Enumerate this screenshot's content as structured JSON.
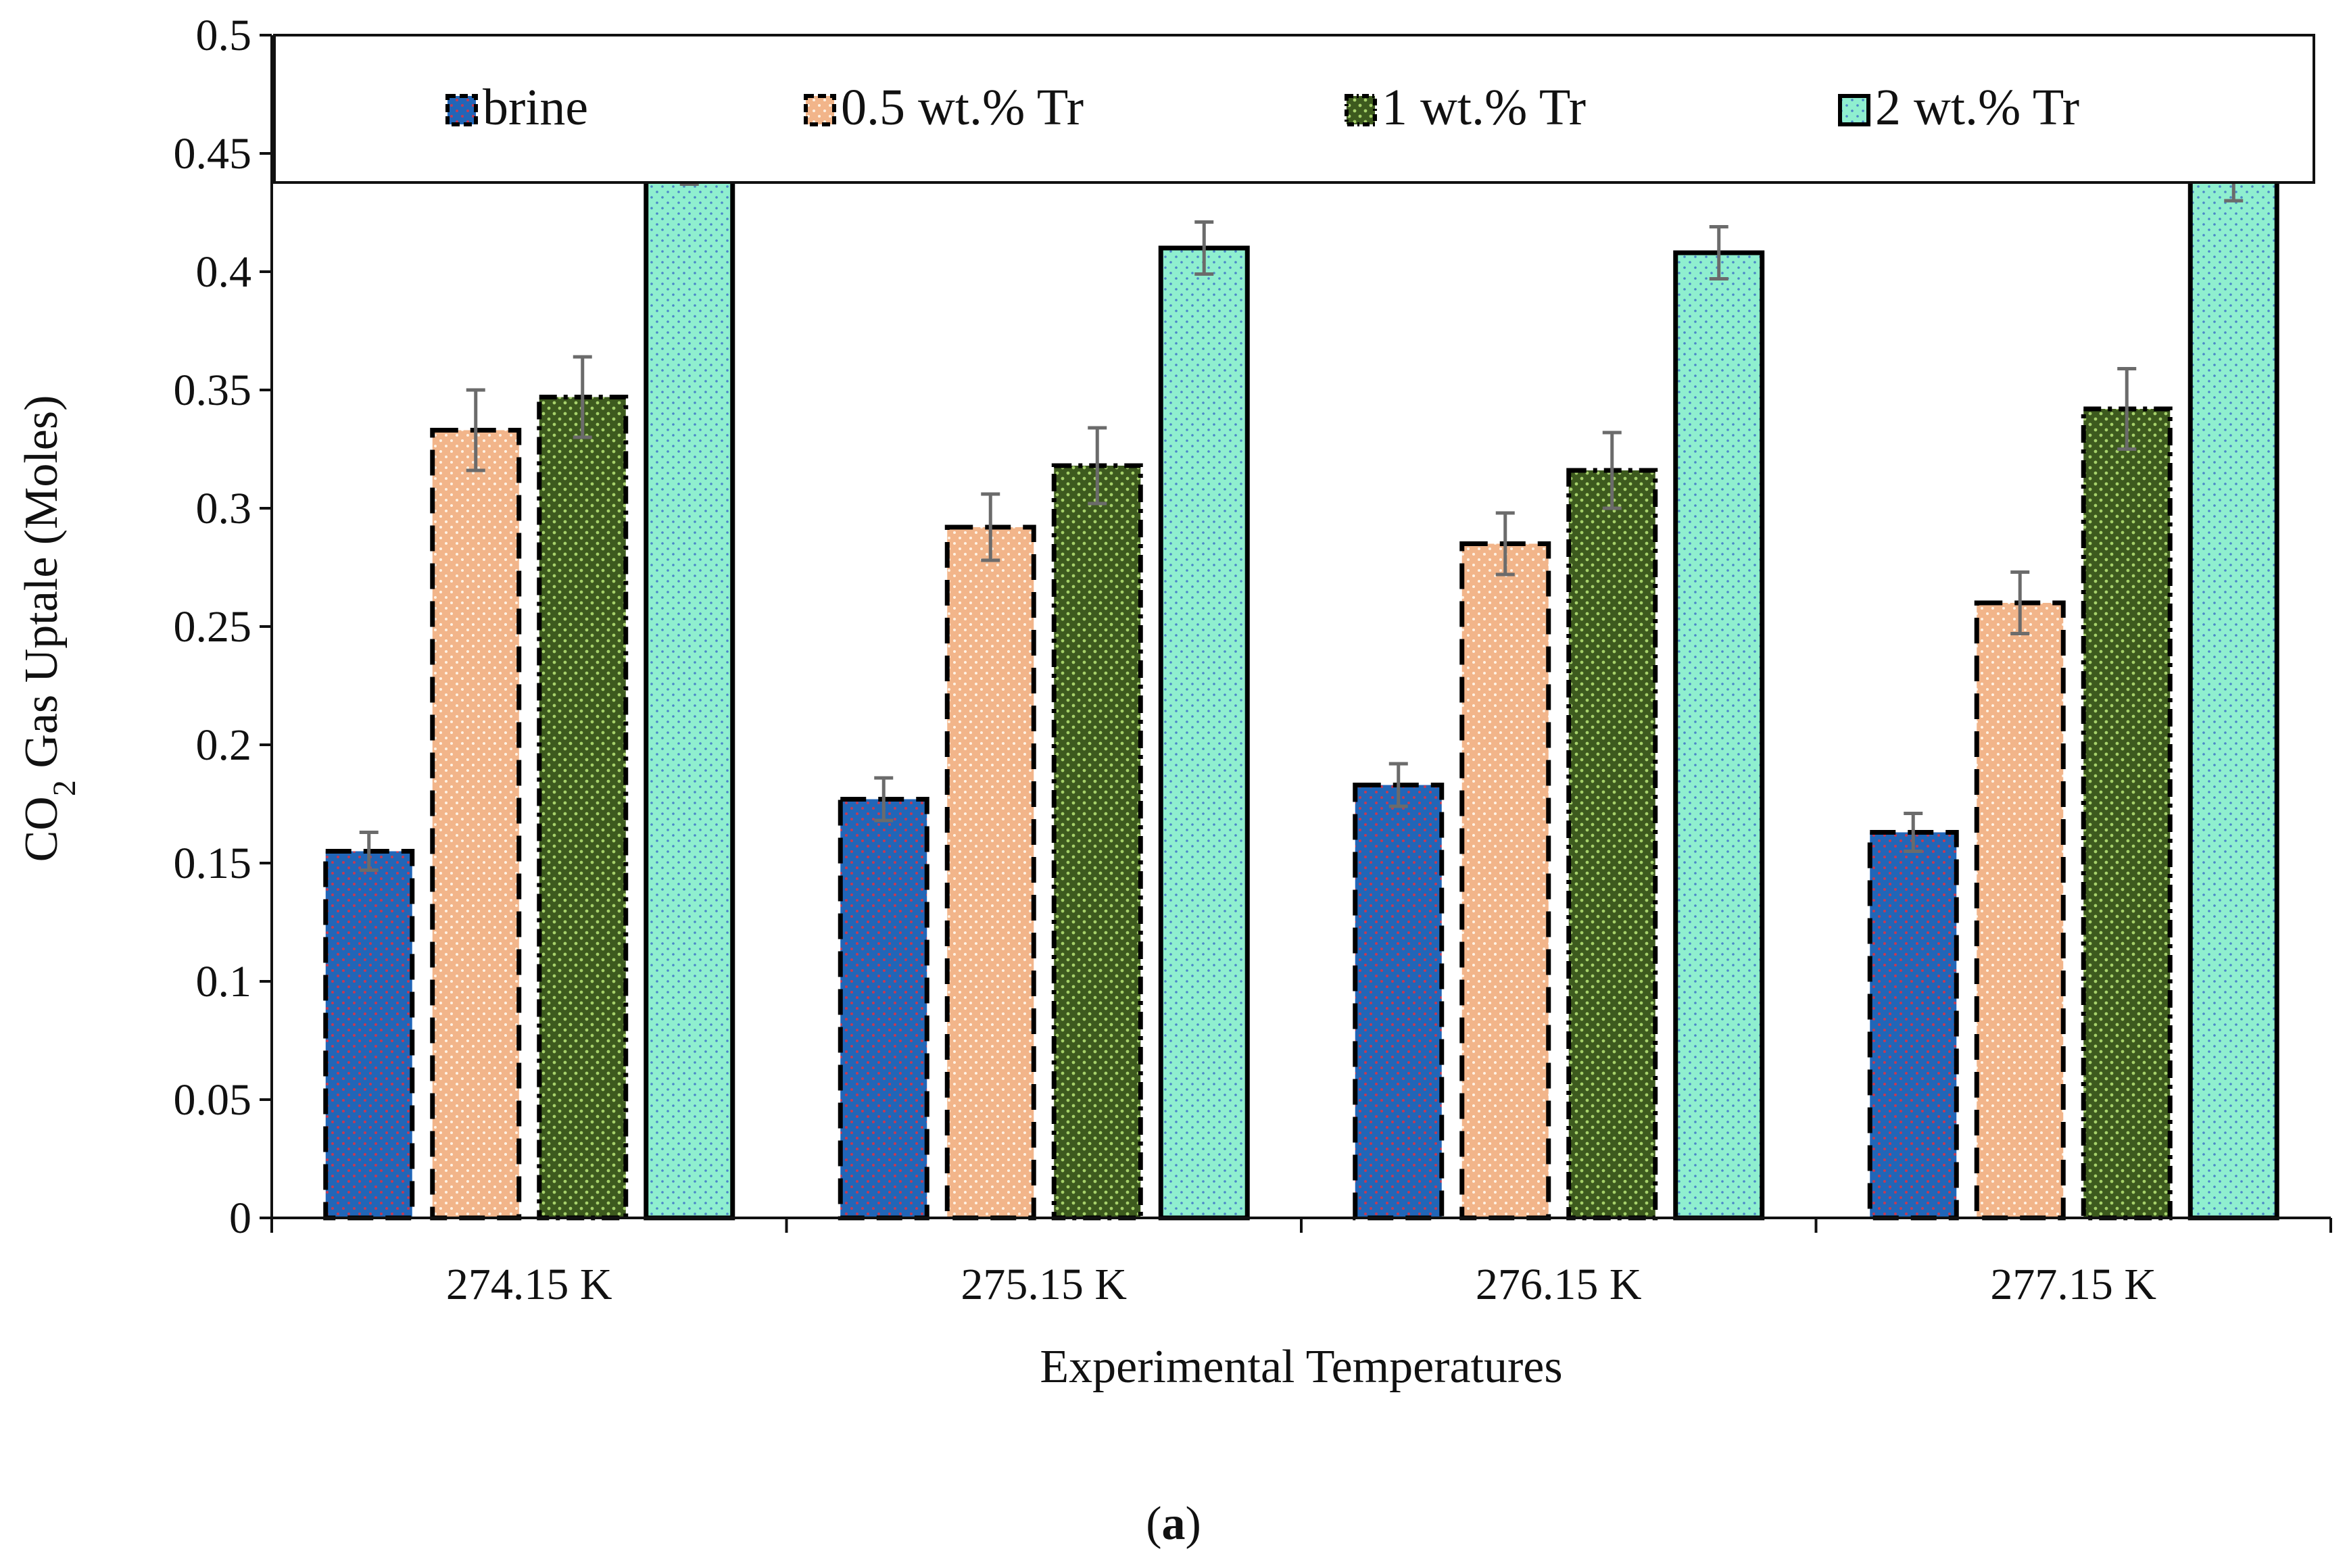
{
  "chart_data": {
    "type": "bar",
    "xlabel": "Experimental Temperatures",
    "ylabel_prefix": "CO",
    "ylabel_sub": "2",
    "ylabel_suffix": " Gas Uptale (Moles)",
    "categories": [
      "274.15 K",
      "275.15 K",
      "276.15 K",
      "277.15 K"
    ],
    "ylim": [
      0,
      0.5
    ],
    "yticks": [
      "0",
      "0.05",
      "0.1",
      "0.15",
      "0.2",
      "0.25",
      "0.3",
      "0.35",
      "0.4",
      "0.45",
      "0.5"
    ],
    "legend_position": "top",
    "grid": false,
    "error_bars": true,
    "series": [
      {
        "name": "brine",
        "values": [
          0.155,
          0.177,
          0.183,
          0.163
        ],
        "errors": [
          0.008,
          0.009,
          0.009,
          0.008
        ],
        "color": "#2166b8"
      },
      {
        "name": "0.5 wt.% Tr",
        "values": [
          0.333,
          0.292,
          0.285,
          0.26
        ],
        "errors": [
          0.017,
          0.014,
          0.013,
          0.013
        ],
        "color": "#f2b58a"
      },
      {
        "name": "1 wt.% Tr",
        "values": [
          0.347,
          0.318,
          0.316,
          0.342
        ],
        "errors": [
          0.017,
          0.016,
          0.016,
          0.017
        ],
        "color": "#3d5a1e"
      },
      {
        "name": "2 wt.% Tr",
        "values": [
          0.448,
          0.41,
          0.408,
          0.441
        ],
        "errors": [
          0.011,
          0.011,
          0.011,
          0.011
        ],
        "color": "#8fefcf"
      }
    ]
  },
  "caption": {
    "open": "(",
    "letter": "a",
    "close": ")"
  }
}
